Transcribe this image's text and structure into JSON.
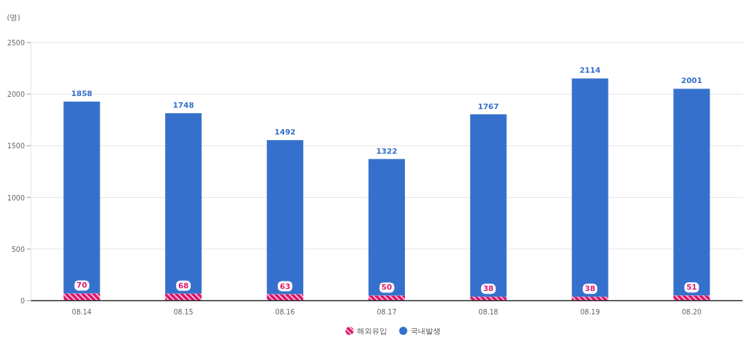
{
  "chart_data": {
    "type": "bar",
    "stacked": true,
    "ylabel": "(명)",
    "categories": [
      "08.14",
      "08.15",
      "08.16",
      "08.17",
      "08.18",
      "08.19",
      "08.20"
    ],
    "series": [
      {
        "name": "해외유입",
        "color": "#e0196e",
        "values": [
          70,
          68,
          63,
          50,
          38,
          38,
          51
        ]
      },
      {
        "name": "국내발생",
        "color": "#3571cc",
        "values": [
          1858,
          1748,
          1492,
          1322,
          1767,
          2114,
          2001
        ]
      }
    ],
    "ylim": [
      0,
      2500
    ],
    "yticks": [
      0,
      500,
      1000,
      1500,
      2000,
      2500
    ],
    "grid": "y",
    "legend": "bottom",
    "data_labels": true
  }
}
